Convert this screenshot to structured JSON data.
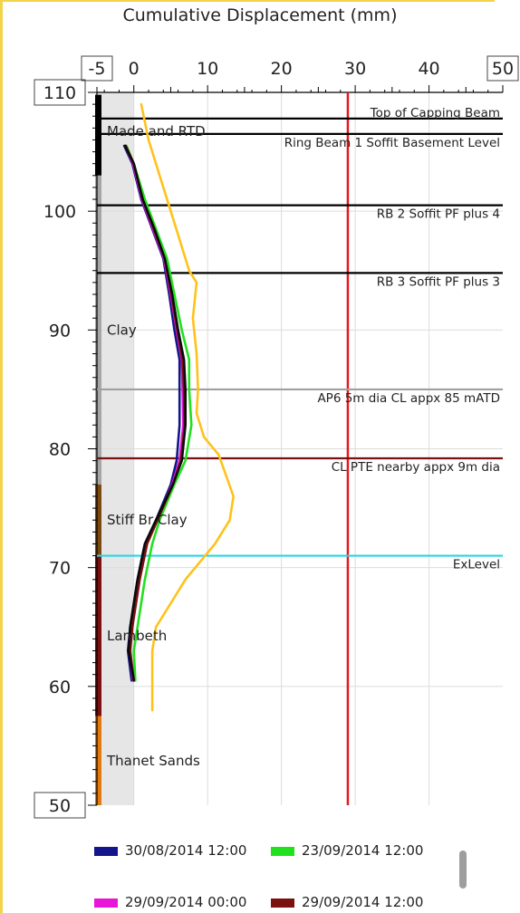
{
  "chart_data": {
    "type": "line",
    "title": "Cumulative Displacement (mm)",
    "xlim": [
      -5,
      50
    ],
    "ylim": [
      50,
      110
    ],
    "x_ticks": [
      -5,
      0,
      10,
      20,
      30,
      40,
      50
    ],
    "y_ticks": [
      110,
      100,
      90,
      80,
      70,
      60,
      50
    ],
    "grid": true,
    "shaded_band": {
      "x_from": -5,
      "x_to": 0,
      "color": "#e6e6e6"
    },
    "strata": [
      {
        "name": "Made and RTD",
        "top": 109.8,
        "bottom": 103,
        "color": "#000000"
      },
      {
        "name": "Clay",
        "top": 103,
        "bottom": 77,
        "color": "#a6a6a6"
      },
      {
        "name": "Stiff Br Clay",
        "top": 77,
        "bottom": 71,
        "color": "#7b4a12"
      },
      {
        "name": "Lambeth",
        "top": 71,
        "bottom": 57.5,
        "color": "#7a1010"
      },
      {
        "name": "Thanet Sands",
        "top": 57.5,
        "bottom": 50,
        "color": "#e07b14"
      }
    ],
    "reference_lines": [
      {
        "label": "Top of Capping Beam",
        "y": 107.8,
        "color": "#000000"
      },
      {
        "label": "Ring Beam 1 Soffit Basement Level",
        "y": 106.5,
        "color": "#000000"
      },
      {
        "label": "RB 2 Soffit PF plus 4",
        "y": 100.5,
        "color": "#000000"
      },
      {
        "label": "RB 3 Soffit PF plus 3",
        "y": 94.8,
        "color": "#000000"
      },
      {
        "label": "AP6 5m dia  CL appx 85 mATD",
        "y": 85.0,
        "color": "#a0a0a0"
      },
      {
        "label": "CL PTE nearby appx 9m dia",
        "y": 79.2,
        "color": "#7a1010"
      },
      {
        "label": "ExLevel",
        "y": 71.0,
        "color": "#2dd3e6"
      }
    ],
    "vertical_lines": [
      {
        "x": 29,
        "color": "#e8161b"
      }
    ],
    "series": [
      {
        "name": "23/09/2014 12:00",
        "color": "#22e01e",
        "points": [
          [
            -1,
            105.5
          ],
          [
            0,
            104
          ],
          [
            1.5,
            101
          ],
          [
            3,
            98.5
          ],
          [
            4.5,
            96
          ],
          [
            5.5,
            93
          ],
          [
            6.5,
            90
          ],
          [
            7.5,
            87.5
          ],
          [
            7.5,
            85
          ],
          [
            7.8,
            82
          ],
          [
            7,
            79
          ],
          [
            5.5,
            77
          ],
          [
            3.5,
            74
          ],
          [
            2.5,
            72
          ],
          [
            1.5,
            69
          ],
          [
            0.5,
            65
          ],
          [
            0,
            63
          ],
          [
            0.2,
            60.5
          ]
        ]
      },
      {
        "name": "30/08/2014 12:00",
        "color": "#14148c",
        "points": [
          [
            -1.3,
            105.5
          ],
          [
            -0.2,
            104
          ],
          [
            1,
            101
          ],
          [
            2.5,
            98.5
          ],
          [
            4,
            96
          ],
          [
            4.8,
            93
          ],
          [
            5.5,
            90
          ],
          [
            6.2,
            87.5
          ],
          [
            6.2,
            85
          ],
          [
            6.2,
            82
          ],
          [
            5.8,
            79
          ],
          [
            5,
            77
          ],
          [
            3,
            74
          ],
          [
            1.5,
            72
          ],
          [
            0.5,
            69
          ],
          [
            -0.5,
            65
          ],
          [
            -0.8,
            63
          ],
          [
            -0.3,
            60.5
          ]
        ]
      },
      {
        "name": "29/09/2014 00:00",
        "color": "#e815d8",
        "points": [
          [
            -1.2,
            105.5
          ],
          [
            -0.1,
            104
          ],
          [
            1.1,
            101
          ],
          [
            2.6,
            98.5
          ],
          [
            4.1,
            96
          ],
          [
            5,
            93
          ],
          [
            5.8,
            90
          ],
          [
            6.5,
            87.5
          ],
          [
            6.6,
            85
          ],
          [
            6.7,
            82
          ],
          [
            6.2,
            79
          ],
          [
            5.2,
            77
          ],
          [
            3.1,
            74
          ],
          [
            1.7,
            72
          ],
          [
            0.7,
            69
          ],
          [
            -0.3,
            65
          ],
          [
            -0.6,
            63
          ],
          [
            -0.1,
            60.5
          ]
        ]
      },
      {
        "name": "29/09/2014 12:00",
        "color": "#7a1010",
        "points": [
          [
            -1.1,
            105.5
          ],
          [
            0,
            104
          ],
          [
            1.2,
            101
          ],
          [
            2.7,
            98.5
          ],
          [
            4.2,
            96
          ],
          [
            5.1,
            93
          ],
          [
            5.9,
            90
          ],
          [
            6.6,
            87.5
          ],
          [
            6.8,
            85
          ],
          [
            6.9,
            82
          ],
          [
            6.4,
            79
          ],
          [
            5.3,
            77
          ],
          [
            3.2,
            74
          ],
          [
            1.8,
            72
          ],
          [
            0.8,
            69
          ],
          [
            -0.2,
            65
          ],
          [
            -0.5,
            63
          ],
          [
            0,
            60.5
          ]
        ]
      },
      {
        "name": "",
        "color": "#0a0a0a",
        "points": [
          [
            -1.2,
            105.5
          ],
          [
            0,
            104
          ],
          [
            1.2,
            101
          ],
          [
            2.8,
            98.5
          ],
          [
            4.2,
            96
          ],
          [
            5.2,
            93
          ],
          [
            6,
            90
          ],
          [
            6.8,
            87.5
          ],
          [
            7,
            85
          ],
          [
            7,
            82
          ],
          [
            6.5,
            79
          ],
          [
            5.3,
            77
          ],
          [
            3,
            74
          ],
          [
            1.5,
            72
          ],
          [
            0.5,
            69
          ],
          [
            -0.5,
            65
          ],
          [
            -0.7,
            63
          ],
          [
            0,
            60.5
          ]
        ]
      },
      {
        "name": "",
        "color": "#ffc21a",
        "points": [
          [
            1,
            109
          ],
          [
            2,
            106
          ],
          [
            3.5,
            103
          ],
          [
            5,
            100
          ],
          [
            6.5,
            97
          ],
          [
            7.5,
            95
          ],
          [
            8.5,
            94
          ],
          [
            8,
            91
          ],
          [
            8.5,
            88
          ],
          [
            8.7,
            85
          ],
          [
            8.5,
            83
          ],
          [
            9.5,
            81
          ],
          [
            11.5,
            79.5
          ],
          [
            13.5,
            76
          ],
          [
            13,
            74
          ],
          [
            11,
            72
          ],
          [
            9,
            70.5
          ],
          [
            7,
            69
          ],
          [
            5,
            67
          ],
          [
            3,
            65
          ],
          [
            2.5,
            63
          ],
          [
            2.5,
            60
          ],
          [
            2.5,
            58
          ]
        ]
      }
    ]
  },
  "legend": {
    "items": [
      {
        "label": "30/08/2014 12:00",
        "color": "#14148c"
      },
      {
        "label": "23/09/2014 12:00",
        "color": "#22e01e"
      },
      {
        "label": "29/09/2014 00:00",
        "color": "#e815d8"
      },
      {
        "label": "29/09/2014 12:00",
        "color": "#7a1010"
      }
    ]
  }
}
